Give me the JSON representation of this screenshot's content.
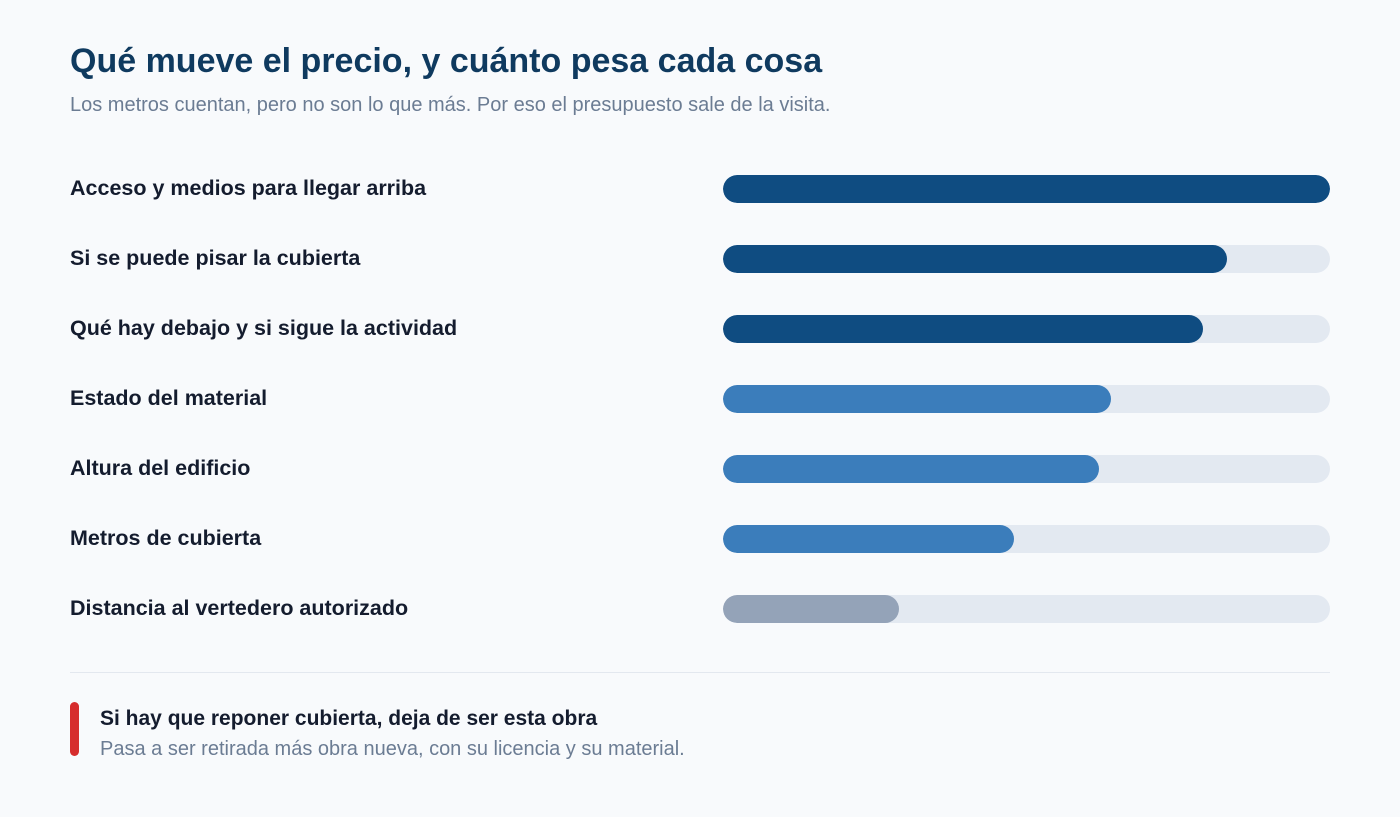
{
  "header": {
    "title": "Qué mueve el precio, y cuánto pesa cada cosa",
    "subtitle": "Los metros cuentan, pero no son lo que más. Por eso el presupuesto sale de la visita."
  },
  "chart_data": {
    "type": "bar",
    "orientation": "horizontal",
    "categories": [
      "Acceso y medios para llegar arriba",
      "Si se puede pisar la cubierta",
      "Qué hay debajo y si sigue la actividad",
      "Estado del material",
      "Altura del edificio",
      "Metros de cubierta",
      "Distancia al vertedero autorizado"
    ],
    "values": [
      100,
      83,
      79,
      64,
      62,
      48,
      29
    ],
    "colors": [
      "#0f4c81",
      "#0f4c81",
      "#0f4c81",
      "#3b7dbb",
      "#3b7dbb",
      "#3b7dbb",
      "#94a3b8"
    ],
    "track_color": "#e3e9f1",
    "xlim": [
      0,
      100
    ],
    "grid": false,
    "title": "Qué mueve el precio, y cuánto pesa cada cosa",
    "xlabel": "",
    "ylabel": ""
  },
  "note": {
    "title": "Si hay que reponer cubierta, deja de ser esta obra",
    "text": "Pasa a ser retirada más obra nueva, con su licencia y su material.",
    "accent_color": "#d62d2d"
  }
}
